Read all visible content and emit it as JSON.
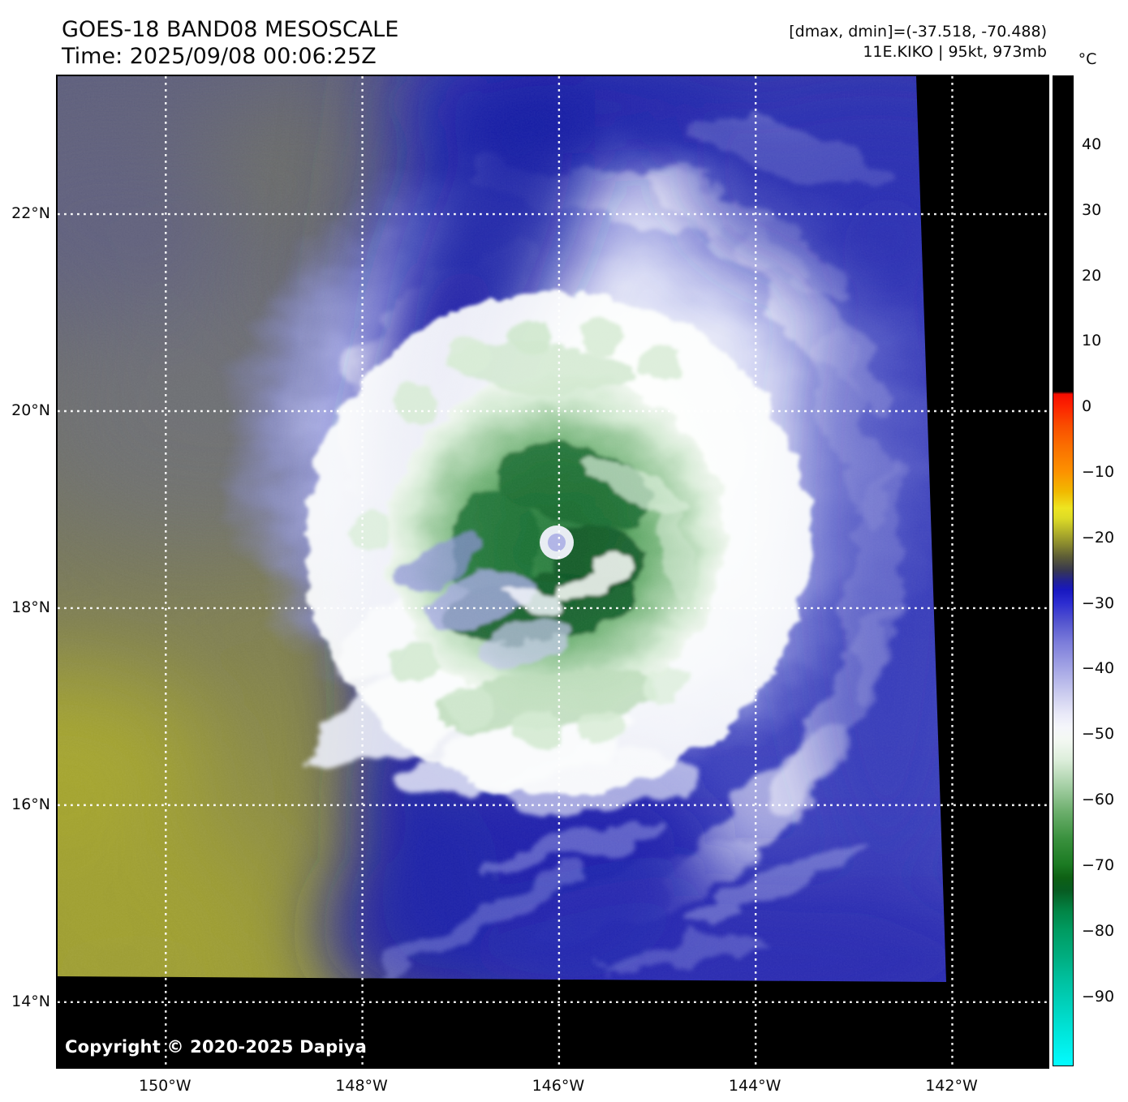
{
  "header": {
    "title": "GOES-18 BAND08 MESOSCALE",
    "time_line": "Time: 2025/09/08 00:06:25Z",
    "annotation_line1": "[dmax, dmin]=(-37.518, -70.488)",
    "annotation_line2": "11E.KIKO | 95kt, 973mb"
  },
  "map": {
    "copyright": "Copyright © 2020-2025 Dapiya",
    "lat_tick_labels": [
      "22°N",
      "20°N",
      "18°N",
      "16°N",
      "14°N"
    ],
    "lon_tick_labels": [
      "150°W",
      "148°W",
      "146°W",
      "144°W",
      "142°W"
    ]
  },
  "colorbar": {
    "unit": "°C",
    "tick_labels": [
      "40",
      "30",
      "20",
      "10",
      "0",
      "−10",
      "−20",
      "−30",
      "−40",
      "−50",
      "−60",
      "−70",
      "−80",
      "−90"
    ]
  },
  "chart_data": {
    "type": "heatmap",
    "title": "GOES-18 BAND08 MESOSCALE",
    "time_utc": "2025/09/08 00:06:25Z",
    "satellite": "GOES-18",
    "band": "BAND08",
    "sector": "MESOSCALE",
    "quantity": "brightness temperature",
    "storm": {
      "designation": "11E",
      "name": "KIKO",
      "intensity_kt": 95,
      "min_pressure_mb": 973,
      "center_estimate_deg": {
        "lat_n": 18.7,
        "lon_w": 146.0
      }
    },
    "dmax_c": -37.518,
    "dmin_c": -70.488,
    "x_axis": {
      "unit": "°W",
      "ticks": [
        150,
        148,
        146,
        144,
        142
      ],
      "range": [
        151.1,
        141.03
      ]
    },
    "y_axis": {
      "unit": "°N",
      "ticks": [
        22,
        20,
        18,
        16,
        14
      ],
      "range": [
        23.4,
        13.34
      ]
    },
    "graticule": {
      "style": "dotted",
      "color": "#ffffff"
    },
    "no_data_color": "#000000",
    "colorbar": {
      "unit": "°C",
      "ticks": [
        40,
        30,
        20,
        10,
        0,
        -10,
        -20,
        -30,
        -40,
        -50,
        -60,
        -70,
        -80,
        -90
      ],
      "range": [
        50.5,
        -100.7
      ],
      "palette": [
        {
          "t": 50.5,
          "color": "#000000"
        },
        {
          "t": 2.3,
          "color": "#000000"
        },
        {
          "t": 1.9,
          "color": "#f60d00"
        },
        {
          "t": 0,
          "color": "#fc2400"
        },
        {
          "t": -3,
          "color": "#f94e00"
        },
        {
          "t": -6,
          "color": "#fa6e00"
        },
        {
          "t": -10,
          "color": "#fc9200"
        },
        {
          "t": -13,
          "color": "#f1b900"
        },
        {
          "t": -15.5,
          "color": "#eee421"
        },
        {
          "t": -17,
          "color": "#dedc26"
        },
        {
          "t": -19,
          "color": "#b5b42a"
        },
        {
          "t": -21,
          "color": "#8a8a2e"
        },
        {
          "t": -23,
          "color": "#5c5c36"
        },
        {
          "t": -25,
          "color": "#38384f"
        },
        {
          "t": -26.5,
          "color": "#23238e"
        },
        {
          "t": -28,
          "color": "#1818c0"
        },
        {
          "t": -30,
          "color": "#2c2cd0"
        },
        {
          "t": -33,
          "color": "#5556cf"
        },
        {
          "t": -36,
          "color": "#7b7cda"
        },
        {
          "t": -40,
          "color": "#a4a5e5"
        },
        {
          "t": -44,
          "color": "#cccdef"
        },
        {
          "t": -47,
          "color": "#e9e9f8"
        },
        {
          "t": -49,
          "color": "#f5f6fb"
        },
        {
          "t": -51,
          "color": "#f3f8f2"
        },
        {
          "t": -54,
          "color": "#ddeedb"
        },
        {
          "t": -58,
          "color": "#a5cfa5"
        },
        {
          "t": -62,
          "color": "#6bae6b"
        },
        {
          "t": -66,
          "color": "#3a913e"
        },
        {
          "t": -70,
          "color": "#1b7a22"
        },
        {
          "t": -72,
          "color": "#0e6014"
        },
        {
          "t": -74,
          "color": "#075c22"
        },
        {
          "t": -77,
          "color": "#028445"
        },
        {
          "t": -80,
          "color": "#009b61"
        },
        {
          "t": -84,
          "color": "#00ad7f"
        },
        {
          "t": -88,
          "color": "#00c2a2"
        },
        {
          "t": -92,
          "color": "#00d4c0"
        },
        {
          "t": -96,
          "color": "#00e7dd"
        },
        {
          "t": -100.7,
          "color": "#04fbff"
        }
      ]
    }
  }
}
